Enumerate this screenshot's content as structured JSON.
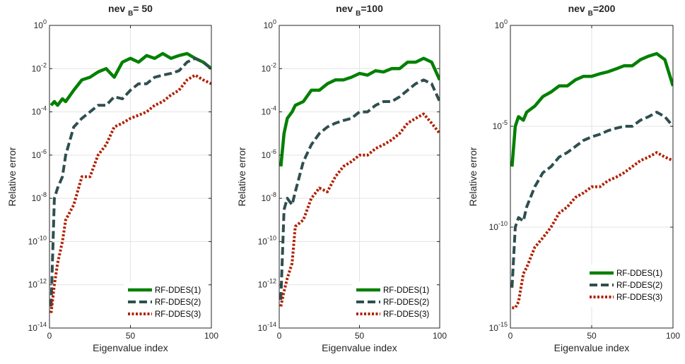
{
  "chart_data": [
    {
      "type": "line",
      "title": {
        "main": "nev",
        "sub": "B",
        "suffix": "= 50"
      },
      "xlabel": "Eigenvalue index",
      "ylabel": "Relative error",
      "xlim": [
        0,
        100
      ],
      "ylim": [
        1e-14,
        1
      ],
      "yscale": "log",
      "xticks": [
        0,
        50,
        100
      ],
      "yticks": [
        {
          "v": 1,
          "base": "10",
          "exp": "0"
        },
        {
          "v": 0.01,
          "base": "10",
          "exp": "-2"
        },
        {
          "v": 0.0001,
          "base": "10",
          "exp": "-4"
        },
        {
          "v": 1e-06,
          "base": "10",
          "exp": "-6"
        },
        {
          "v": 1e-08,
          "base": "10",
          "exp": "-8"
        },
        {
          "v": 1e-10,
          "base": "10",
          "exp": "-10"
        },
        {
          "v": 1e-12,
          "base": "10",
          "exp": "-12"
        },
        {
          "v": 1e-14,
          "base": "10",
          "exp": "-14"
        }
      ],
      "grid": true,
      "legend_position": "lower-right",
      "series": [
        {
          "name": "RF-DDES(1)",
          "color": "#008000",
          "style": "solid",
          "x": [
            1,
            3,
            5,
            8,
            10,
            15,
            20,
            25,
            30,
            35,
            40,
            45,
            50,
            55,
            60,
            65,
            70,
            75,
            80,
            85,
            90,
            95,
            100
          ],
          "y": [
            0.0002,
            0.0003,
            0.0002,
            0.0004,
            0.0003,
            0.001,
            0.003,
            0.004,
            0.007,
            0.01,
            0.004,
            0.02,
            0.03,
            0.02,
            0.04,
            0.03,
            0.05,
            0.03,
            0.04,
            0.05,
            0.03,
            0.02,
            0.01
          ]
        },
        {
          "name": "RF-DDES(2)",
          "color": "#2f4f4f",
          "style": "dashed",
          "x": [
            1,
            3,
            5,
            8,
            10,
            15,
            20,
            25,
            30,
            35,
            40,
            45,
            50,
            55,
            60,
            65,
            70,
            75,
            80,
            85,
            90,
            95,
            100
          ],
          "y": [
            1e-13,
            1e-08,
            3e-08,
            1e-07,
            1e-06,
            2e-05,
            5e-05,
            0.0001,
            0.0002,
            0.0002,
            0.0005,
            0.0004,
            0.001,
            0.002,
            0.002,
            0.004,
            0.005,
            0.006,
            0.008,
            0.02,
            0.03,
            0.02,
            0.01
          ]
        },
        {
          "name": "RF-DDES(3)",
          "color": "#b22000",
          "style": "dotted",
          "x": [
            1,
            3,
            5,
            8,
            10,
            15,
            20,
            25,
            30,
            35,
            40,
            45,
            50,
            55,
            60,
            65,
            70,
            75,
            80,
            85,
            90,
            95,
            100
          ],
          "y": [
            5e-14,
            1e-12,
            1e-11,
            1e-10,
            1e-09,
            5e-09,
            1e-07,
            1e-07,
            1e-06,
            3e-06,
            2e-05,
            3e-05,
            5e-05,
            7e-05,
            0.0001,
            0.0002,
            0.0003,
            0.0006,
            0.001,
            0.003,
            0.005,
            0.003,
            0.002
          ]
        }
      ]
    },
    {
      "type": "line",
      "title": {
        "main": "nev",
        "sub": "B",
        "suffix": "=100"
      },
      "xlabel": "Eigenvalue index",
      "ylabel": "Relative error",
      "xlim": [
        0,
        100
      ],
      "ylim": [
        1e-14,
        1
      ],
      "yscale": "log",
      "xticks": [
        0,
        50,
        100
      ],
      "yticks": [
        {
          "v": 1,
          "base": "10",
          "exp": "0"
        },
        {
          "v": 0.01,
          "base": "10",
          "exp": "-2"
        },
        {
          "v": 0.0001,
          "base": "10",
          "exp": "-4"
        },
        {
          "v": 1e-06,
          "base": "10",
          "exp": "-6"
        },
        {
          "v": 1e-08,
          "base": "10",
          "exp": "-8"
        },
        {
          "v": 1e-10,
          "base": "10",
          "exp": "-10"
        },
        {
          "v": 1e-12,
          "base": "10",
          "exp": "-12"
        },
        {
          "v": 1e-14,
          "base": "10",
          "exp": "-14"
        }
      ],
      "grid": true,
      "legend_position": "lower-right",
      "series": [
        {
          "name": "RF-DDES(1)",
          "color": "#008000",
          "style": "solid",
          "x": [
            1,
            3,
            5,
            8,
            10,
            15,
            20,
            25,
            30,
            35,
            40,
            45,
            50,
            55,
            60,
            65,
            70,
            75,
            80,
            85,
            90,
            95,
            100
          ],
          "y": [
            3e-07,
            1e-05,
            5e-05,
            0.0001,
            0.0002,
            0.0003,
            0.001,
            0.001,
            0.002,
            0.003,
            0.003,
            0.004,
            0.006,
            0.005,
            0.008,
            0.007,
            0.01,
            0.01,
            0.02,
            0.02,
            0.03,
            0.02,
            0.003
          ]
        },
        {
          "name": "RF-DDES(2)",
          "color": "#2f4f4f",
          "style": "dashed",
          "x": [
            1,
            3,
            5,
            8,
            10,
            15,
            20,
            25,
            30,
            35,
            40,
            45,
            50,
            55,
            60,
            65,
            70,
            75,
            80,
            85,
            90,
            95,
            100
          ],
          "y": [
            2e-13,
            3e-09,
            1e-08,
            5e-09,
            2e-08,
            5e-07,
            3e-06,
            1e-05,
            2e-05,
            3e-05,
            4e-05,
            5e-05,
            0.0001,
            0.0001,
            0.0002,
            0.0003,
            0.0003,
            0.0005,
            0.001,
            0.002,
            0.003,
            0.002,
            0.0003
          ]
        },
        {
          "name": "RF-DDES(3)",
          "color": "#b22000",
          "style": "dotted",
          "x": [
            1,
            3,
            5,
            8,
            10,
            15,
            20,
            25,
            30,
            35,
            40,
            45,
            50,
            55,
            60,
            65,
            70,
            75,
            80,
            85,
            90,
            95,
            100
          ],
          "y": [
            1e-13,
            5e-13,
            2e-12,
            1e-11,
            5e-10,
            1e-09,
            1e-08,
            3e-08,
            2e-08,
            1e-07,
            3e-07,
            5e-07,
            1e-06,
            1e-06,
            2e-06,
            3e-06,
            5e-06,
            1e-05,
            3e-05,
            5e-05,
            8e-05,
            3e-05,
            1e-05
          ]
        }
      ]
    },
    {
      "type": "line",
      "title": {
        "main": "nev",
        "sub": "B",
        "suffix": "=200"
      },
      "xlabel": "Eigenvalue index",
      "ylabel": "Relative error",
      "xlim": [
        0,
        100
      ],
      "ylim": [
        1e-15,
        1
      ],
      "yscale": "log",
      "xticks": [
        0,
        50,
        100
      ],
      "yticks": [
        {
          "v": 1,
          "base": "10",
          "exp": "0"
        },
        {
          "v": 1e-05,
          "base": "10",
          "exp": "-5"
        },
        {
          "v": 1e-10,
          "base": "10",
          "exp": "-10"
        },
        {
          "v": 1e-15,
          "base": "10",
          "exp": "-15"
        }
      ],
      "grid": true,
      "legend_position": "lower-right",
      "series": [
        {
          "name": "RF-DDES(1)",
          "color": "#008000",
          "style": "solid",
          "x": [
            1,
            3,
            5,
            8,
            10,
            15,
            20,
            25,
            30,
            35,
            40,
            45,
            50,
            55,
            60,
            65,
            70,
            75,
            80,
            85,
            90,
            95,
            100
          ],
          "y": [
            1e-07,
            1e-05,
            3e-05,
            2e-05,
            5e-05,
            0.0001,
            0.0003,
            0.0005,
            0.001,
            0.001,
            0.002,
            0.003,
            0.003,
            0.004,
            0.005,
            0.007,
            0.01,
            0.01,
            0.02,
            0.03,
            0.04,
            0.02,
            0.001
          ]
        },
        {
          "name": "RF-DDES(2)",
          "color": "#2f4f4f",
          "style": "dashed",
          "x": [
            1,
            3,
            5,
            8,
            10,
            15,
            20,
            25,
            30,
            35,
            40,
            45,
            50,
            55,
            60,
            65,
            70,
            75,
            80,
            85,
            90,
            95,
            100
          ],
          "y": [
            1e-13,
            1e-10,
            3e-10,
            2e-10,
            1e-09,
            1e-08,
            5e-08,
            1e-07,
            3e-07,
            5e-07,
            1e-06,
            2e-06,
            3e-06,
            4e-06,
            6e-06,
            8e-06,
            1e-05,
            1e-05,
            2e-05,
            3e-05,
            5e-05,
            3e-05,
            1e-05
          ]
        },
        {
          "name": "RF-DDES(3)",
          "color": "#b22000",
          "style": "dotted",
          "x": [
            1,
            3,
            5,
            8,
            10,
            15,
            20,
            25,
            30,
            35,
            40,
            45,
            50,
            55,
            60,
            65,
            70,
            75,
            80,
            85,
            90,
            95,
            100
          ],
          "y": [
            1e-14,
            1e-14,
            2e-14,
            5e-13,
            1e-12,
            1e-11,
            3e-11,
            1e-10,
            5e-10,
            1e-09,
            3e-09,
            5e-09,
            1e-08,
            1e-08,
            2e-08,
            3e-08,
            5e-08,
            1e-07,
            2e-07,
            3e-07,
            5e-07,
            3e-07,
            2e-07
          ]
        }
      ]
    }
  ]
}
